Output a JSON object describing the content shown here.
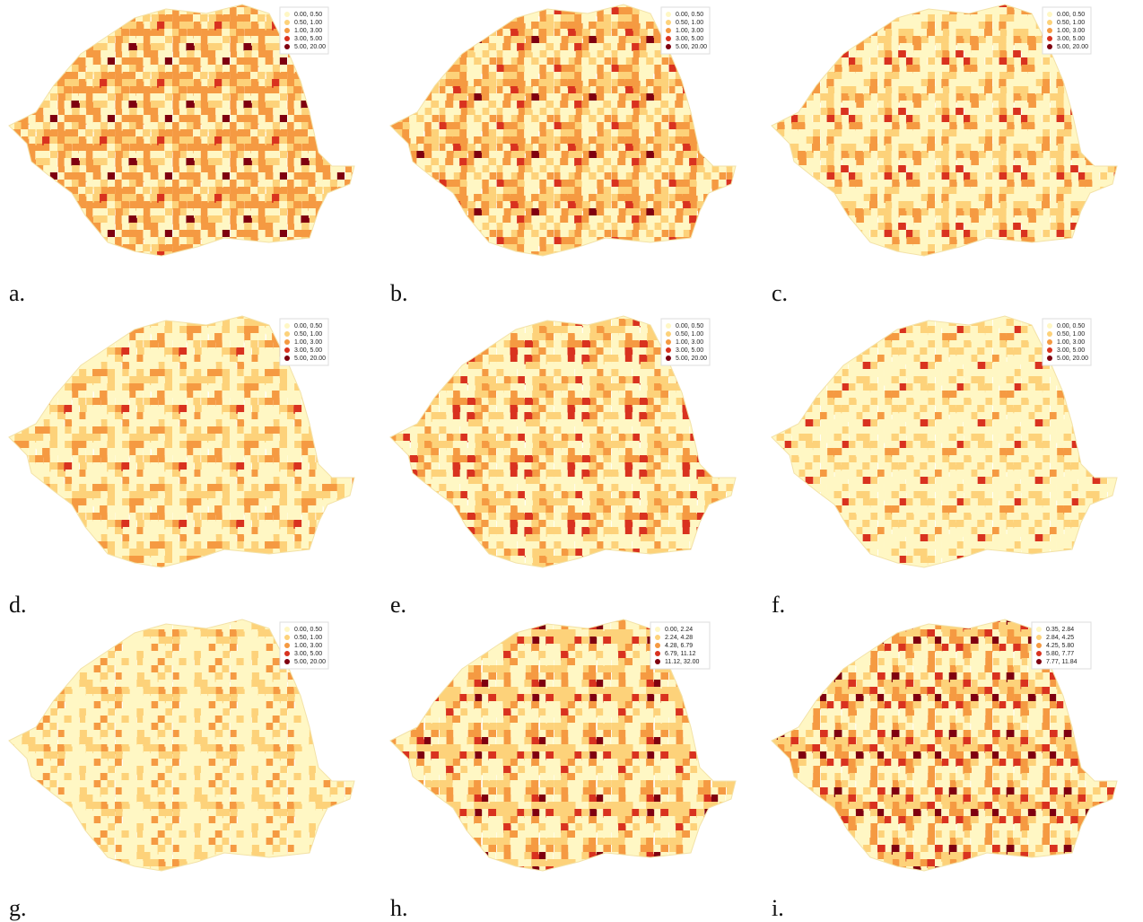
{
  "panels": [
    {
      "label": "a.",
      "legend": [
        {
          "label": "0.00,  0.50",
          "color": "#fff7c4"
        },
        {
          "label": "0.50,  1.00",
          "color": "#fdd27a"
        },
        {
          "label": "1.00,  3.00",
          "color": "#f59a42"
        },
        {
          "label": "3.00,  5.00",
          "color": "#d9321f"
        },
        {
          "label": "5.00, 20.00",
          "color": "#7f0010"
        }
      ]
    },
    {
      "label": "b.",
      "legend": [
        {
          "label": "0.00,  0.50",
          "color": "#fff7c4"
        },
        {
          "label": "0.50,  1.00",
          "color": "#fdd27a"
        },
        {
          "label": "1.00,  3.00",
          "color": "#f59a42"
        },
        {
          "label": "3.00,  5.00",
          "color": "#d9321f"
        },
        {
          "label": "5.00, 20.00",
          "color": "#7f0010"
        }
      ]
    },
    {
      "label": "c.",
      "legend": [
        {
          "label": "0.00,  0.50",
          "color": "#fff7c4"
        },
        {
          "label": "0.50,  1.00",
          "color": "#fdd27a"
        },
        {
          "label": "1.00,  3.00",
          "color": "#f59a42"
        },
        {
          "label": "3.00,  5.00",
          "color": "#d9321f"
        },
        {
          "label": "5.00, 20.00",
          "color": "#7f0010"
        }
      ]
    },
    {
      "label": "d.",
      "legend": [
        {
          "label": "0.00,  0.50",
          "color": "#fff7c4"
        },
        {
          "label": "0.50,  1.00",
          "color": "#fdd27a"
        },
        {
          "label": "1.00,  3.00",
          "color": "#f59a42"
        },
        {
          "label": "3.00,  5.00",
          "color": "#d9321f"
        },
        {
          "label": "5.00, 20.00",
          "color": "#7f0010"
        }
      ]
    },
    {
      "label": "e.",
      "legend": [
        {
          "label": "0.00,  0.50",
          "color": "#fff7c4"
        },
        {
          "label": "0.50,  1.00",
          "color": "#fdd27a"
        },
        {
          "label": "1.00,  3.00",
          "color": "#f59a42"
        },
        {
          "label": "3.00,  5.00",
          "color": "#d9321f"
        },
        {
          "label": "5.00, 20.00",
          "color": "#7f0010"
        }
      ]
    },
    {
      "label": "f.",
      "legend": [
        {
          "label": "0.00,  0.50",
          "color": "#fff7c4"
        },
        {
          "label": "0.50,  1.00",
          "color": "#fdd27a"
        },
        {
          "label": "1.00,  3.00",
          "color": "#f59a42"
        },
        {
          "label": "3.00,  5.00",
          "color": "#d9321f"
        },
        {
          "label": "5.00, 20.00",
          "color": "#7f0010"
        }
      ]
    },
    {
      "label": "g.",
      "legend": [
        {
          "label": "0.00,  0.50",
          "color": "#fff7c4"
        },
        {
          "label": "0.50,  1.00",
          "color": "#fdd27a"
        },
        {
          "label": "1.00,  3.00",
          "color": "#f59a42"
        },
        {
          "label": "3.00,  5.00",
          "color": "#d9321f"
        },
        {
          "label": "5.00, 20.00",
          "color": "#7f0010"
        }
      ]
    },
    {
      "label": "h.",
      "legend": [
        {
          "label": "0.00,  2.24",
          "color": "#fff7c4"
        },
        {
          "label": "2.24,  4.28",
          "color": "#fdd27a"
        },
        {
          "label": "4.28,  6.79",
          "color": "#f59a42"
        },
        {
          "label": "6.79, 11.12",
          "color": "#d9321f"
        },
        {
          "label": "11.12, 32.00",
          "color": "#7f0010"
        }
      ]
    },
    {
      "label": "i.",
      "legend": [
        {
          "label": "0.35,  2.84",
          "color": "#fff7c4"
        },
        {
          "label": "2.84,  4.25",
          "color": "#fdd27a"
        },
        {
          "label": "4.25,  5.80",
          "color": "#f59a42"
        },
        {
          "label": "5.80,  7.77",
          "color": "#d9321f"
        },
        {
          "label": "7.77, 11.84",
          "color": "#7f0010"
        }
      ]
    }
  ]
}
